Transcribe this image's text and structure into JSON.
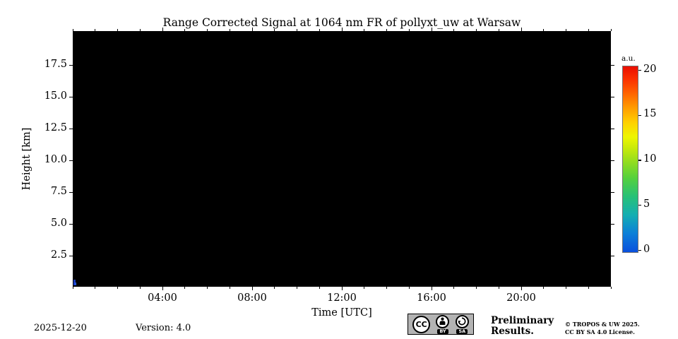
{
  "chart": {
    "title": "Range Corrected Signal at 1064 nm FR of pollyxt_uw at Warsaw",
    "xlabel": "Time [UTC]",
    "ylabel": "Height [km]"
  },
  "chart_data": {
    "type": "heatmap",
    "title": "Range Corrected Signal at 1064 nm FR of pollyxt_uw at Warsaw",
    "xlabel": "Time [UTC]",
    "ylabel": "Height [km]",
    "x_range_hours": [
      0,
      24
    ],
    "x_minor_tick_interval_hours": 1,
    "x_major_tick_hours": [
      4,
      8,
      12,
      16,
      20
    ],
    "x_major_tick_labels": [
      "04:00",
      "08:00",
      "12:00",
      "16:00",
      "20:00"
    ],
    "y_tick_values_km": [
      17.5,
      15.0,
      12.5,
      10.0,
      7.5,
      5.0,
      2.5
    ],
    "y_tick_labels": [
      "17.5",
      "15.0",
      "12.5",
      "10.0",
      "7.5",
      "5.0",
      "2.5"
    ],
    "ylim_km": [
      0.1,
      20.2
    ],
    "plot_background": "black (no range-corrected signal data shown for the day)",
    "visible_data": [
      {
        "time_utc": "about 00:00-00:10",
        "height_km": "about 0.1-0.5",
        "value_au": "low (~0-2)",
        "color": "#2a57dd",
        "note": "tiny blue signal patch at the lower-left corner of the plot"
      }
    ],
    "colorbar": {
      "unit": "a.u.",
      "range": [
        0,
        20
      ],
      "tick_values": [
        0,
        5,
        10,
        15,
        20
      ],
      "tick_labels": [
        "0",
        "5",
        "10",
        "15",
        "20"
      ],
      "colormap": "jet-like: blue at 0, cyan ~4, green ~8, yellow ~12.5, orange ~15, red at 20",
      "position": "right of plot"
    },
    "grid": "off",
    "legend": "none"
  },
  "footer": {
    "date": "2025-12-20",
    "version": "Version: 4.0",
    "preliminary_line1": "Preliminary",
    "preliminary_line2": "Results.",
    "preliminary_color": "#ee3333",
    "copyright_line1": "© TROPOS & UW 2025.",
    "copyright_line2": "CC BY SA 4.0 License.",
    "license_badge": {
      "cc": "CC",
      "by": "BY",
      "sa": "SA"
    }
  }
}
